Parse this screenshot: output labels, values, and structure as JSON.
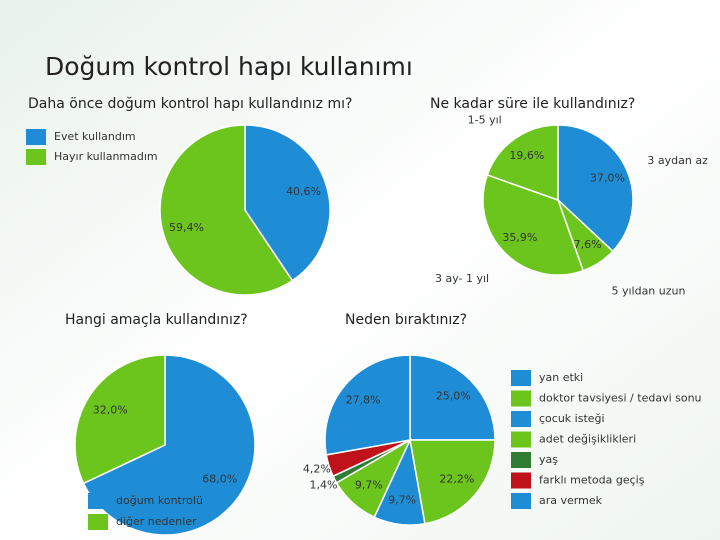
{
  "title": "Doğum kontrol hapı kullanımı",
  "chart_data": [
    {
      "type": "pie",
      "title": "Daha önce doğum kontrol hapı kullandınız mı?",
      "categories": [
        "Evet kullandım",
        "Hayır kullanmadım"
      ],
      "values": [
        40.6,
        59.4
      ],
      "value_labels": [
        "40,6%",
        "59,4%"
      ],
      "colors": [
        "#1f8dd6",
        "#6cc51c"
      ],
      "legend": true
    },
    {
      "type": "pie",
      "title": "Ne kadar süre ile kullandınız?",
      "categories": [
        "3 aydan az",
        "5 yıldan uzun",
        "3 ay- 1 yıl",
        "1-5 yıl"
      ],
      "values": [
        37.0,
        7.6,
        35.9,
        19.6
      ],
      "value_labels": [
        "37,0%",
        "7,6%",
        "35,9%",
        "19,6%"
      ],
      "colors": [
        "#1f8dd6",
        "#6cc51c",
        "#6cc51c",
        "#6cc51c"
      ],
      "legend": false
    },
    {
      "type": "pie",
      "title": "Hangi amaçla kullandınız?",
      "categories": [
        "doğum kontrolü",
        "diğer nedenler"
      ],
      "values": [
        68.0,
        32.0
      ],
      "value_labels": [
        "68,0%",
        "32,0%"
      ],
      "colors": [
        "#1f8dd6",
        "#6cc51c"
      ],
      "legend": true
    },
    {
      "type": "pie",
      "title": "Neden bıraktınız?",
      "categories": [
        "yan etki",
        "doktor tavsiyesi / tedavi sonu",
        "çocuk isteği",
        "adet değişiklikleri",
        "yaş",
        "farklı metoda geçiş",
        "ara vermek"
      ],
      "values": [
        25.0,
        22.2,
        9.7,
        9.7,
        1.4,
        4.2,
        27.8
      ],
      "value_labels": [
        "25,0%",
        "22,2%",
        "9,7%",
        "9,7%",
        "1,4%",
        "4,2%",
        "27,8%"
      ],
      "colors": [
        "#1f8dd6",
        "#6cc51c",
        "#1f8dd6",
        "#6cc51c",
        "#2e7d32",
        "#c0121a",
        "#1f8dd6"
      ],
      "legend": true
    }
  ]
}
